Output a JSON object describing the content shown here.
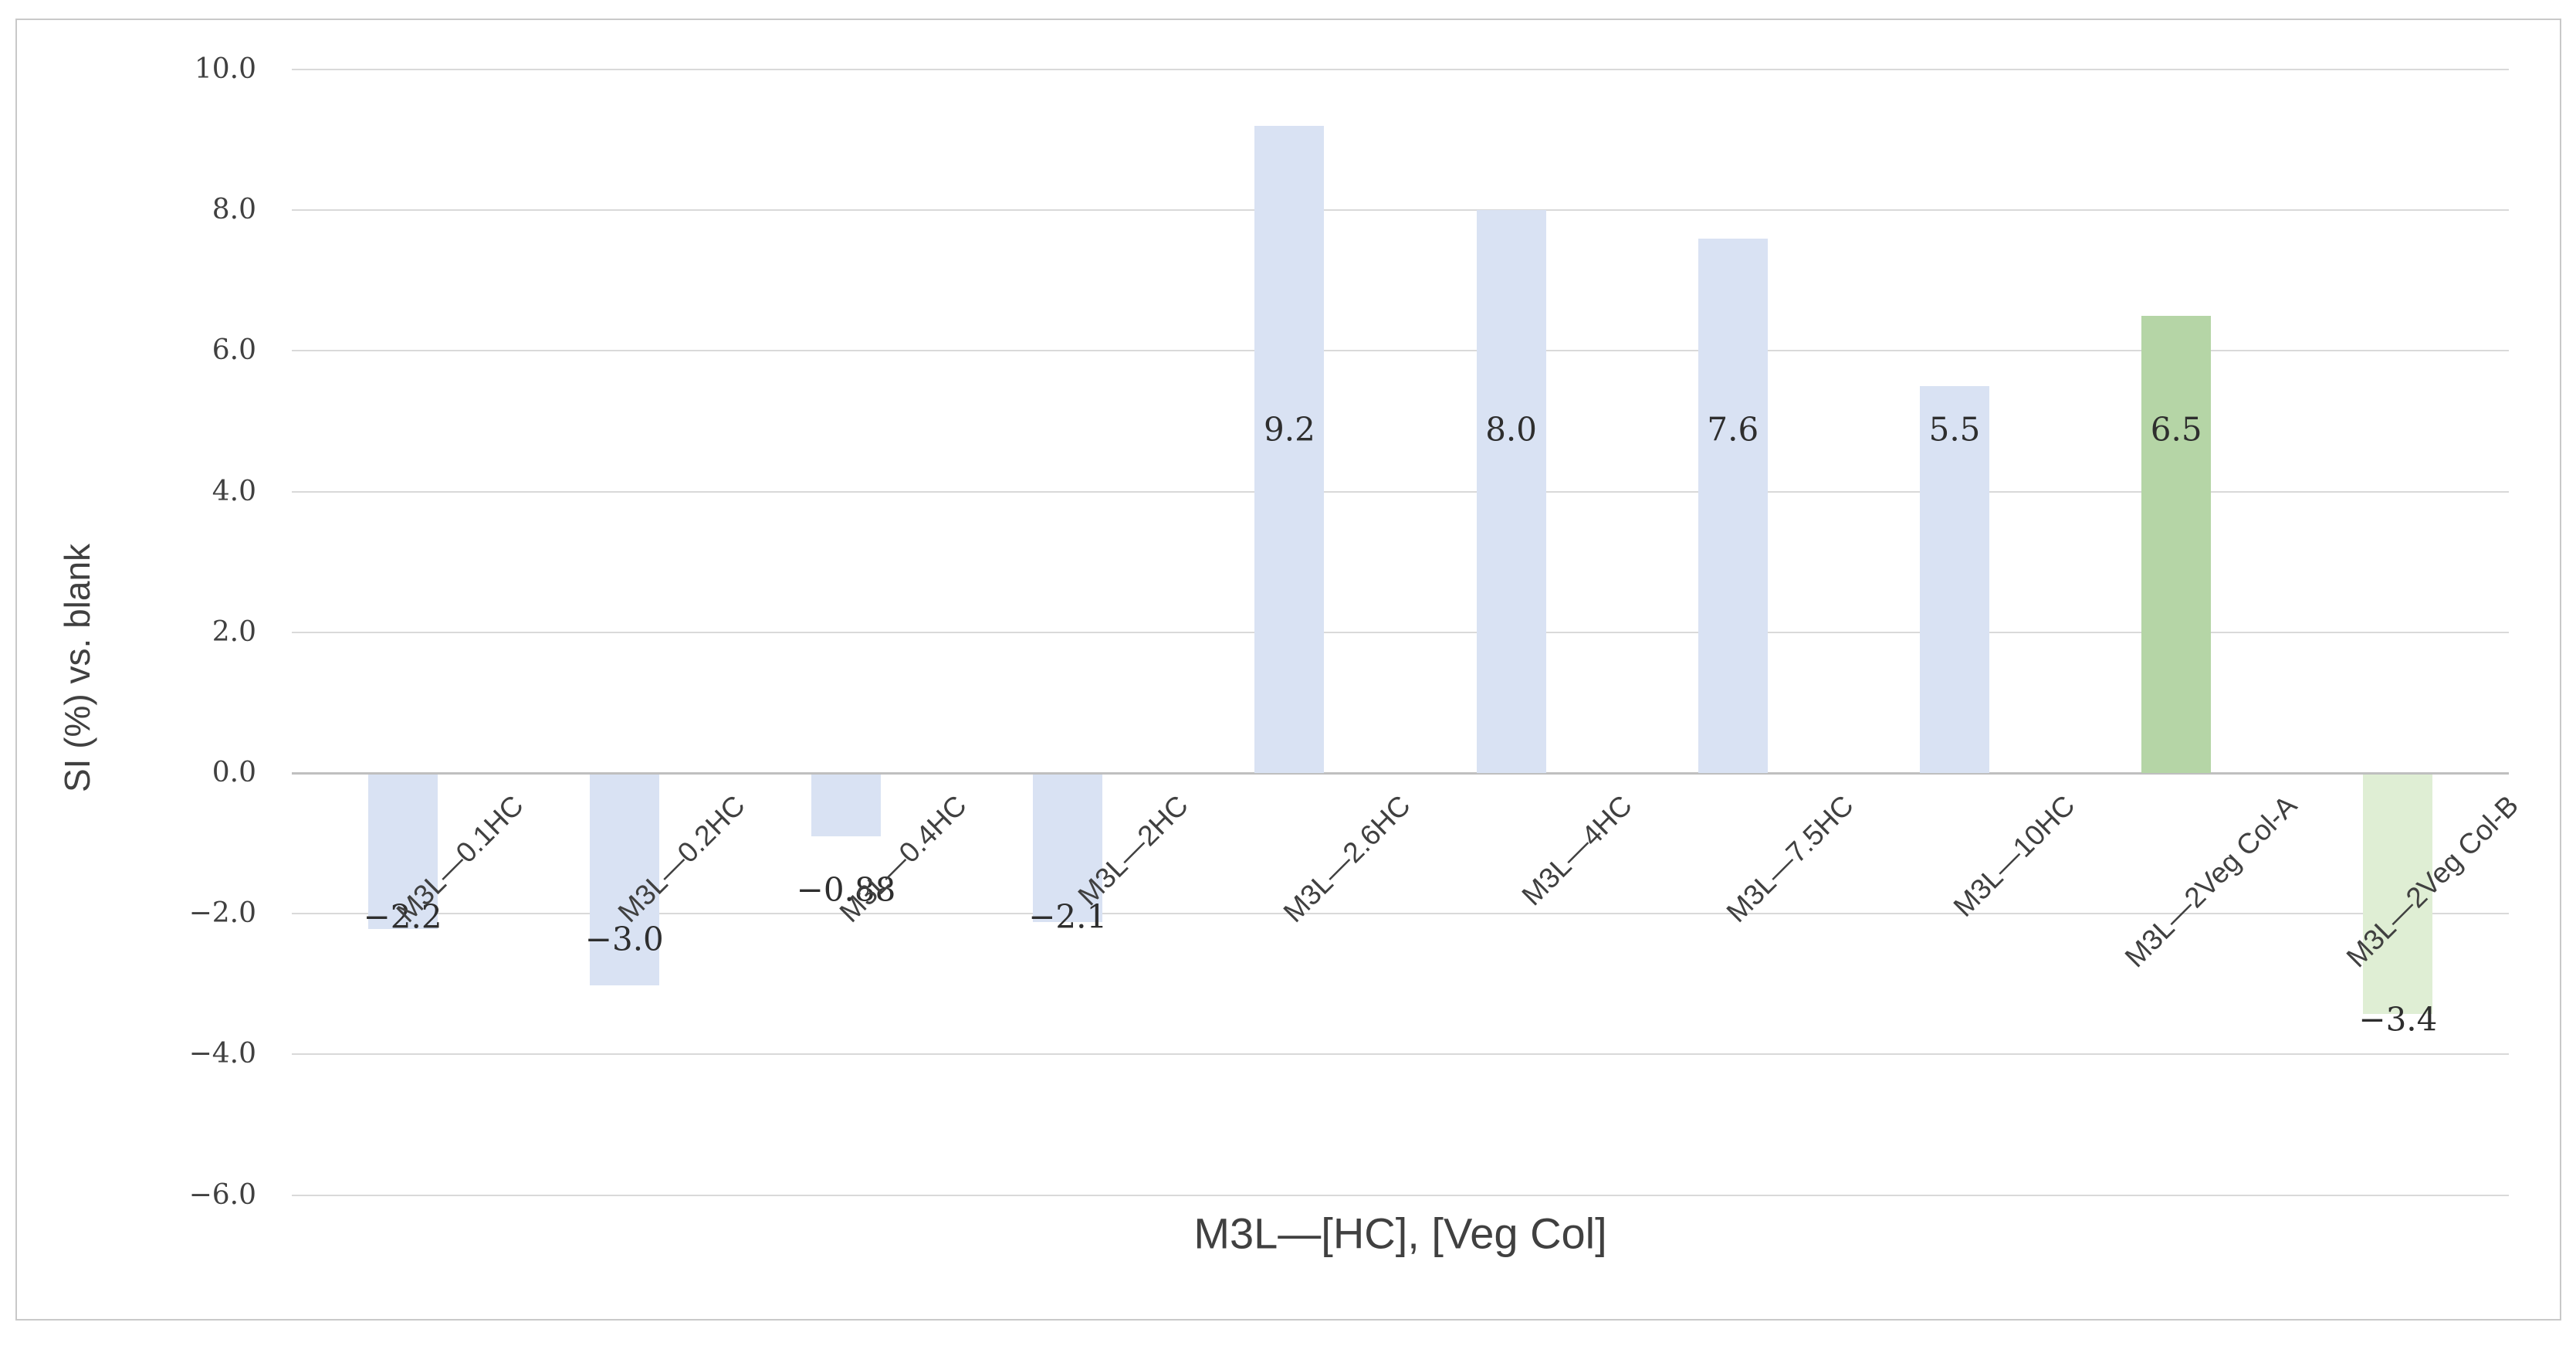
{
  "chart_data": {
    "type": "bar",
    "title": "",
    "xlabel": "M3L—[HC], [Veg Col]",
    "ylabel": "SI (%) vs. blank",
    "categories": [
      "M3L—0.1HC",
      "M3L—0.2HC",
      "M3L—0.4HC",
      "M3L—2HC",
      "M3L—2.6HC",
      "M3L—4HC",
      "M3L—7.5HC",
      "M3L—10HC",
      "M3L—2Veg Col-A",
      "M3L—2Veg Col-B"
    ],
    "values": [
      -2.2,
      -3.0,
      -0.88,
      -2.1,
      9.2,
      8.0,
      7.6,
      5.5,
      6.5,
      -3.4
    ],
    "value_labels": [
      "−2.2",
      "−3.0",
      "−0.88",
      "−2.1",
      "9.2",
      "8.0",
      "7.6",
      "5.5",
      "6.5",
      "−3.4"
    ],
    "label_positions": [
      -2.04,
      -2.36,
      -1.66,
      -2.04,
      4.88,
      4.88,
      4.88,
      4.88,
      4.88,
      -3.5
    ],
    "bar_colors": [
      "#d9e2f3",
      "#d9e2f3",
      "#d9e2f3",
      "#d9e2f3",
      "#d9e2f3",
      "#d9e2f3",
      "#d9e2f3",
      "#d9e2f3",
      "#b5d5a6",
      "#dfeed4"
    ],
    "yticks": [
      10,
      8,
      6,
      4,
      2,
      0,
      -2,
      -4,
      -6
    ],
    "ytick_labels": [
      "10.0",
      "8.0",
      "6.0",
      "4.0",
      "2.0",
      "0.0",
      "−2.0",
      "−4.0",
      "−6.0"
    ],
    "ylim": [
      -6,
      10
    ],
    "grid": "on",
    "legend": "none",
    "colors": {
      "blue_series": "#d9e2f3",
      "green_a": "#b5d5a6",
      "green_b": "#dfeed4",
      "gridline": "#d9d9d9",
      "zero_line": "#bfbfbf",
      "tick_text": "#404040",
      "value_text": "#2e2e2e",
      "frame_border": "#c9c9c9"
    }
  }
}
